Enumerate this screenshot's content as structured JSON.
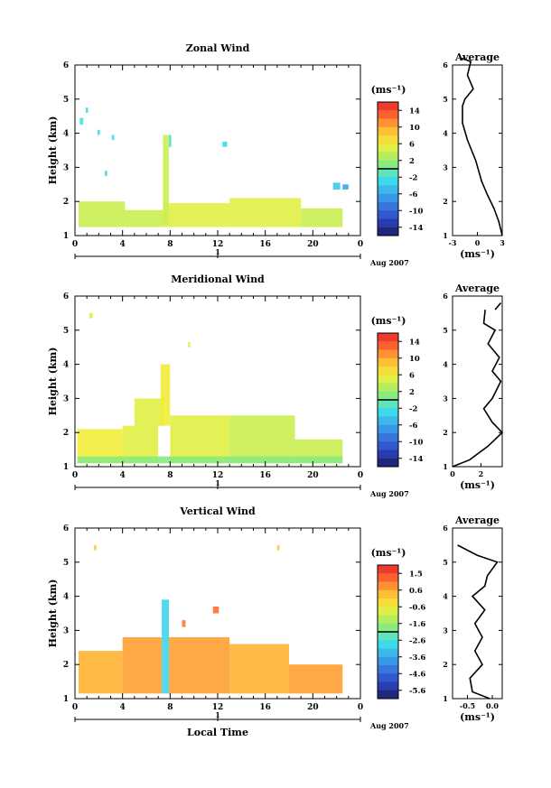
{
  "chart_data": [
    {
      "type": "heatmap",
      "title": "Zonal Wind",
      "ylabel": "Height (km)",
      "xlabel": "",
      "xlim": [
        0,
        24
      ],
      "ylim": [
        1,
        6
      ],
      "x_ticks": [
        "0",
        "4",
        "8",
        "12",
        "16",
        "20",
        "0"
      ],
      "y_ticks": [
        "1",
        "2",
        "3",
        "4",
        "5",
        "6"
      ],
      "date_marker": "1",
      "date_label": "Aug 2007",
      "colorbar": {
        "unit": "(ms⁻¹)",
        "ticks": [
          "14",
          "10",
          "6",
          "2",
          "-2",
          "-6",
          "-10",
          "-14"
        ],
        "range": [
          -16,
          16
        ]
      },
      "cells": [
        {
          "t0": 0.3,
          "t1": 4.2,
          "h0": 1.25,
          "h1": 2.0,
          "v": 4
        },
        {
          "t0": 4.2,
          "t1": 7.4,
          "h0": 1.25,
          "h1": 1.75,
          "v": 4
        },
        {
          "t0": 7.4,
          "t1": 13.0,
          "h0": 1.25,
          "h1": 1.95,
          "v": 5
        },
        {
          "t0": 13.0,
          "t1": 19.0,
          "h0": 1.25,
          "h1": 2.1,
          "v": 5
        },
        {
          "t0": 19.0,
          "t1": 22.5,
          "h0": 1.25,
          "h1": 1.8,
          "v": 4
        },
        {
          "t0": 7.4,
          "t1": 7.9,
          "h0": 1.3,
          "h1": 3.95,
          "v": 4
        },
        {
          "t0": 7.9,
          "t1": 8.1,
          "h0": 3.6,
          "h1": 3.95,
          "v": -2
        },
        {
          "t0": 0.4,
          "t1": 0.7,
          "h0": 4.25,
          "h1": 4.45,
          "v": -2
        },
        {
          "t0": 0.9,
          "t1": 1.1,
          "h0": 4.6,
          "h1": 4.75,
          "v": -3
        },
        {
          "t0": 1.9,
          "t1": 2.1,
          "h0": 3.95,
          "h1": 4.1,
          "v": -3
        },
        {
          "t0": 2.5,
          "t1": 2.7,
          "h0": 2.75,
          "h1": 2.9,
          "v": -3
        },
        {
          "t0": 3.1,
          "t1": 3.3,
          "h0": 3.8,
          "h1": 3.95,
          "v": -3
        },
        {
          "t0": 12.4,
          "t1": 12.8,
          "h0": 3.6,
          "h1": 3.75,
          "v": -3
        },
        {
          "t0": 21.7,
          "t1": 22.3,
          "h0": 2.35,
          "h1": 2.55,
          "v": -4
        },
        {
          "t0": 22.5,
          "t1": 23.0,
          "h0": 2.35,
          "h1": 2.5,
          "v": -6
        }
      ],
      "average_profile": {
        "title": "Average",
        "xlabel": "(ms⁻¹)",
        "x_ticks": [
          "-3",
          "0",
          "3"
        ],
        "xlim": [
          -3,
          3
        ],
        "y_ticks": [
          "1",
          "2",
          "3",
          "4",
          "5",
          "6"
        ],
        "ylim": [
          1,
          6
        ],
        "points": [
          [
            3.0,
            1.0
          ],
          [
            2.6,
            1.4
          ],
          [
            2.0,
            1.8
          ],
          [
            1.2,
            2.2
          ],
          [
            0.5,
            2.6
          ],
          [
            -0.2,
            3.2
          ],
          [
            -1.2,
            3.8
          ],
          [
            -1.8,
            4.3
          ],
          [
            -1.8,
            4.8
          ],
          [
            -1.5,
            5.0
          ],
          [
            -0.5,
            5.3
          ],
          [
            -1.2,
            5.7
          ],
          [
            -0.8,
            6.1
          ],
          [
            -1.9,
            6.2
          ]
        ]
      }
    },
    {
      "type": "heatmap",
      "title": "Meridional Wind",
      "ylabel": "Height (km)",
      "xlabel": "",
      "xlim": [
        0,
        24
      ],
      "ylim": [
        1,
        6
      ],
      "x_ticks": [
        "0",
        "4",
        "8",
        "12",
        "16",
        "20",
        "0"
      ],
      "y_ticks": [
        "1",
        "2",
        "3",
        "4",
        "5",
        "6"
      ],
      "date_marker": "1",
      "date_label": "Aug 2007",
      "colorbar": {
        "unit": "(ms⁻¹)",
        "ticks": [
          "14",
          "10",
          "6",
          "2",
          "-2",
          "-6",
          "-10",
          "-14"
        ],
        "range": [
          -16,
          16
        ]
      },
      "cells": [
        {
          "t0": 0.2,
          "t1": 4.0,
          "h0": 1.1,
          "h1": 2.1,
          "v": 6
        },
        {
          "t0": 4.0,
          "t1": 7.0,
          "h0": 1.1,
          "h1": 2.2,
          "v": 5
        },
        {
          "t0": 5.0,
          "t1": 7.5,
          "h0": 2.2,
          "h1": 3.0,
          "v": 5
        },
        {
          "t0": 7.2,
          "t1": 8.0,
          "h0": 2.2,
          "h1": 4.0,
          "v": 6
        },
        {
          "t0": 8.0,
          "t1": 13.0,
          "h0": 1.1,
          "h1": 2.5,
          "v": 5
        },
        {
          "t0": 13.0,
          "t1": 18.5,
          "h0": 1.1,
          "h1": 2.5,
          "v": 4
        },
        {
          "t0": 18.5,
          "t1": 22.5,
          "h0": 1.1,
          "h1": 1.8,
          "v": 4
        },
        {
          "t0": 0.2,
          "t1": 22.5,
          "h0": 1.1,
          "h1": 1.3,
          "v": 1
        },
        {
          "t0": 1.2,
          "t1": 1.5,
          "h0": 5.35,
          "h1": 5.5,
          "v": 5
        },
        {
          "t0": 9.5,
          "t1": 9.7,
          "h0": 4.5,
          "h1": 4.65,
          "v": 5
        }
      ],
      "average_profile": {
        "title": "Average",
        "xlabel": "(ms⁻¹)",
        "x_ticks": [
          "0",
          "2"
        ],
        "xlim": [
          0,
          3.5
        ],
        "y_ticks": [
          "1",
          "2",
          "3",
          "4",
          "5",
          "6"
        ],
        "ylim": [
          1,
          6
        ],
        "points": [
          [
            0.0,
            1.0
          ],
          [
            1.2,
            1.2
          ],
          [
            2.5,
            1.6
          ],
          [
            3.5,
            2.0
          ],
          [
            2.8,
            2.3
          ],
          [
            2.2,
            2.7
          ],
          [
            2.8,
            3.0
          ],
          [
            3.4,
            3.5
          ],
          [
            2.8,
            3.8
          ],
          [
            3.3,
            4.2
          ],
          [
            2.5,
            4.6
          ],
          [
            3.0,
            5.0
          ],
          [
            2.2,
            5.2
          ],
          [
            2.3,
            5.6
          ]
        ],
        "points_upper": [
          [
            3.0,
            5.6
          ],
          [
            3.4,
            5.8
          ]
        ]
      }
    },
    {
      "type": "heatmap",
      "title": "Vertical Wind",
      "ylabel": "Height (km)",
      "xlabel": "Local Time",
      "xlim": [
        0,
        24
      ],
      "ylim": [
        1,
        6
      ],
      "x_ticks": [
        "0",
        "4",
        "8",
        "12",
        "16",
        "20",
        "0"
      ],
      "y_ticks": [
        "1",
        "2",
        "3",
        "4",
        "5",
        "6"
      ],
      "date_marker": "1",
      "date_label": "Aug 2007",
      "colorbar": {
        "unit": "(ms⁻¹)",
        "ticks": [
          "1.5",
          "0.6",
          "-0.6",
          "-1.6",
          "-2.6",
          "-3.6",
          "-4.6",
          "-5.6"
        ],
        "range": [
          -6,
          2
        ]
      },
      "cells": [
        {
          "t0": 0.3,
          "t1": 4.0,
          "h0": 1.15,
          "h1": 2.4,
          "v": 0.4
        },
        {
          "t0": 4.0,
          "t1": 7.3,
          "h0": 1.15,
          "h1": 2.8,
          "v": 0.6
        },
        {
          "t0": 7.3,
          "t1": 7.9,
          "h0": 1.15,
          "h1": 3.9,
          "v": -2.8
        },
        {
          "t0": 7.9,
          "t1": 13.0,
          "h0": 1.15,
          "h1": 2.8,
          "v": 0.6
        },
        {
          "t0": 13.0,
          "t1": 18.0,
          "h0": 1.15,
          "h1": 2.6,
          "v": 0.4
        },
        {
          "t0": 18.0,
          "t1": 22.5,
          "h0": 1.15,
          "h1": 2.0,
          "v": 0.6
        },
        {
          "t0": 9.0,
          "t1": 9.3,
          "h0": 3.1,
          "h1": 3.3,
          "v": 1.0
        },
        {
          "t0": 11.6,
          "t1": 12.1,
          "h0": 3.5,
          "h1": 3.7,
          "v": 1.1
        },
        {
          "t0": 1.6,
          "t1": 1.8,
          "h0": 5.35,
          "h1": 5.5,
          "v": 0.0
        },
        {
          "t0": 17.0,
          "t1": 17.2,
          "h0": 5.35,
          "h1": 5.5,
          "v": 0.0
        }
      ],
      "average_profile": {
        "title": "Average",
        "xlabel": "(ms⁻¹)",
        "x_ticks": [
          "-0.5",
          "0.0"
        ],
        "xlim": [
          -0.8,
          0.2
        ],
        "y_ticks": [
          "1",
          "2",
          "3",
          "4",
          "5",
          "6"
        ],
        "ylim": [
          1,
          6
        ],
        "points": [
          [
            -0.05,
            1.0
          ],
          [
            -0.4,
            1.2
          ],
          [
            -0.45,
            1.6
          ],
          [
            -0.2,
            2.0
          ],
          [
            -0.35,
            2.4
          ],
          [
            -0.2,
            2.8
          ],
          [
            -0.35,
            3.2
          ],
          [
            -0.15,
            3.6
          ],
          [
            -0.4,
            4.0
          ],
          [
            -0.15,
            4.3
          ],
          [
            -0.1,
            4.6
          ],
          [
            0.1,
            5.0
          ],
          [
            -0.3,
            5.2
          ],
          [
            -0.7,
            5.5
          ]
        ]
      }
    }
  ]
}
